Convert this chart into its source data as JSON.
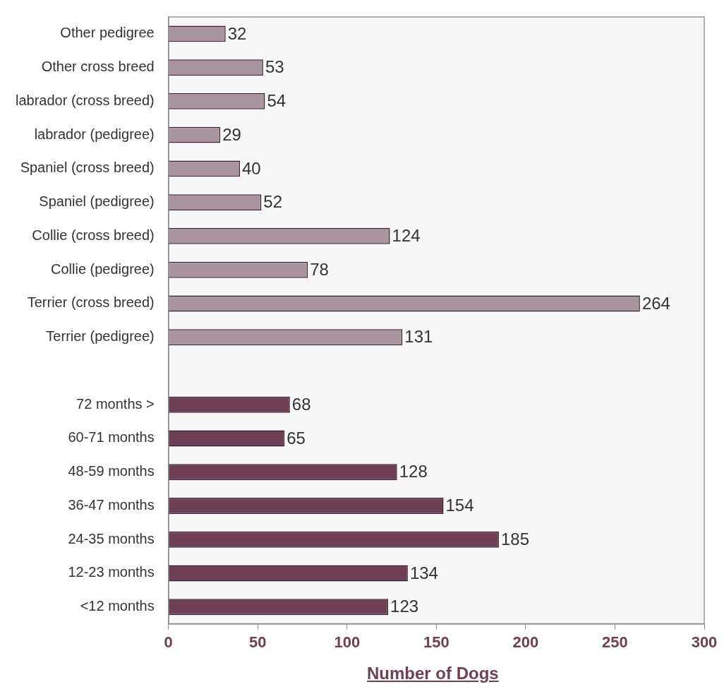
{
  "chart_data": {
    "type": "bar",
    "orientation": "horizontal",
    "xlabel": "Number of Dogs",
    "categories": [
      "Other pedigree",
      "Other cross breed",
      "labrador (cross breed)",
      "labrador (pedigree)",
      "Spaniel (cross breed)",
      "Spaniel (pedigree)",
      "Collie (cross breed)",
      "Collie (pedigree)",
      "Terrier (cross breed)",
      "Terrier (pedigree)",
      null,
      "72 months >",
      "60-71 months",
      "48-59 months",
      "36-47 months",
      "24-35 months",
      "12-23 months",
      "<12 months"
    ],
    "values": [
      32,
      53,
      54,
      29,
      40,
      52,
      124,
      78,
      264,
      131,
      null,
      68,
      65,
      128,
      154,
      185,
      134,
      123
    ],
    "colors": [
      "#a8959f",
      "#a8959f",
      "#a8959f",
      "#a8959f",
      "#a8959f",
      "#a8959f",
      "#a8959f",
      "#a8959f",
      "#a8959f",
      "#a8959f",
      "#a8959f",
      "#6e3f55",
      "#6e3f55",
      "#6e3f55",
      "#6e3f55",
      "#6e3f55",
      "#6e3f55",
      "#6e3f55"
    ],
    "xlim": [
      0,
      300
    ],
    "xticks": [
      0,
      50,
      100,
      150,
      200,
      250,
      300
    ],
    "grid": false,
    "legend": false,
    "data_labels": true
  }
}
